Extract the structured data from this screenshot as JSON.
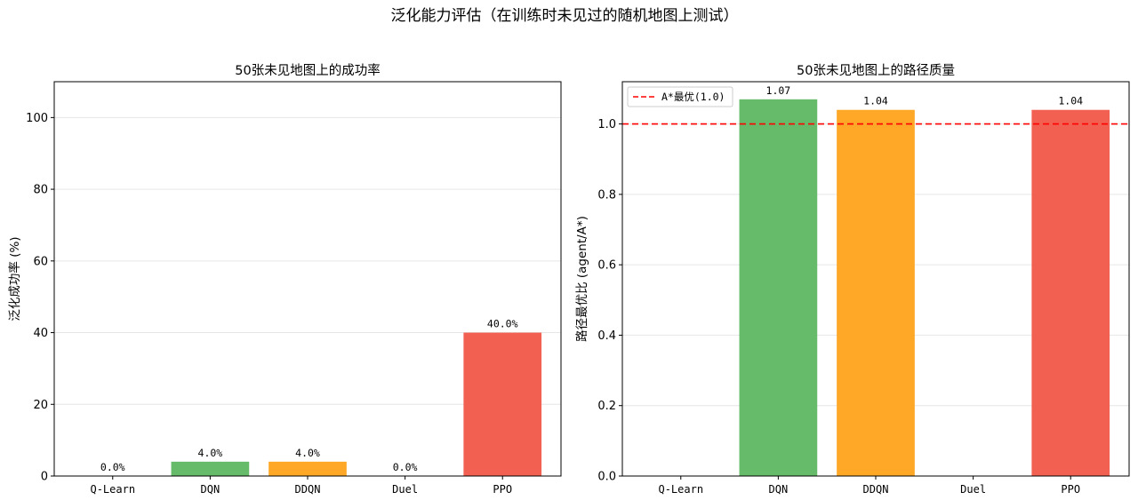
{
  "figure": {
    "title": "泛化能力评估（在训练时未见过的随机地图上测试）"
  },
  "colors": {
    "Q-Learn": "#5b9bd5",
    "DQN": "#66bb6a",
    "DDQN": "#ffa726",
    "Duel": "#ab47bc",
    "PPO": "#f26052",
    "reference_line": "#ff0000"
  },
  "chart_data": [
    {
      "type": "bar",
      "title": "50张未见地图上的成功率",
      "xlabel": "",
      "ylabel": "泛化成功率 (%)",
      "categories": [
        "Q-Learn",
        "DQN",
        "DDQN",
        "Duel",
        "PPO"
      ],
      "values": [
        0.0,
        4.0,
        4.0,
        0.0,
        40.0
      ],
      "data_labels": [
        "0.0%",
        "4.0%",
        "4.0%",
        "0.0%",
        "40.0%"
      ],
      "ylim": [
        0,
        110
      ],
      "yticks": [
        0,
        20,
        40,
        60,
        80,
        100
      ],
      "ytick_labels": [
        "0",
        "20",
        "40",
        "60",
        "80",
        "100"
      ],
      "grid": "y"
    },
    {
      "type": "bar",
      "title": "50张未见地图上的路径质量",
      "xlabel": "",
      "ylabel": "路径最优比 (agent/A*)",
      "categories": [
        "Q-Learn",
        "DQN",
        "DDQN",
        "Duel",
        "PPO"
      ],
      "values": [
        null,
        1.07,
        1.04,
        null,
        1.04
      ],
      "data_labels": [
        "",
        "1.07",
        "1.04",
        "",
        "1.04"
      ],
      "ylim": [
        0,
        1.12
      ],
      "yticks": [
        0,
        0.2,
        0.4,
        0.6,
        0.8,
        1.0
      ],
      "ytick_labels": [
        "0.0",
        "0.2",
        "0.4",
        "0.6",
        "0.8",
        "1.0"
      ],
      "reference_line": {
        "value": 1.0,
        "label": "A*最优(1.0)",
        "style": "dashed"
      },
      "legend": "top-left",
      "grid": "y"
    }
  ]
}
